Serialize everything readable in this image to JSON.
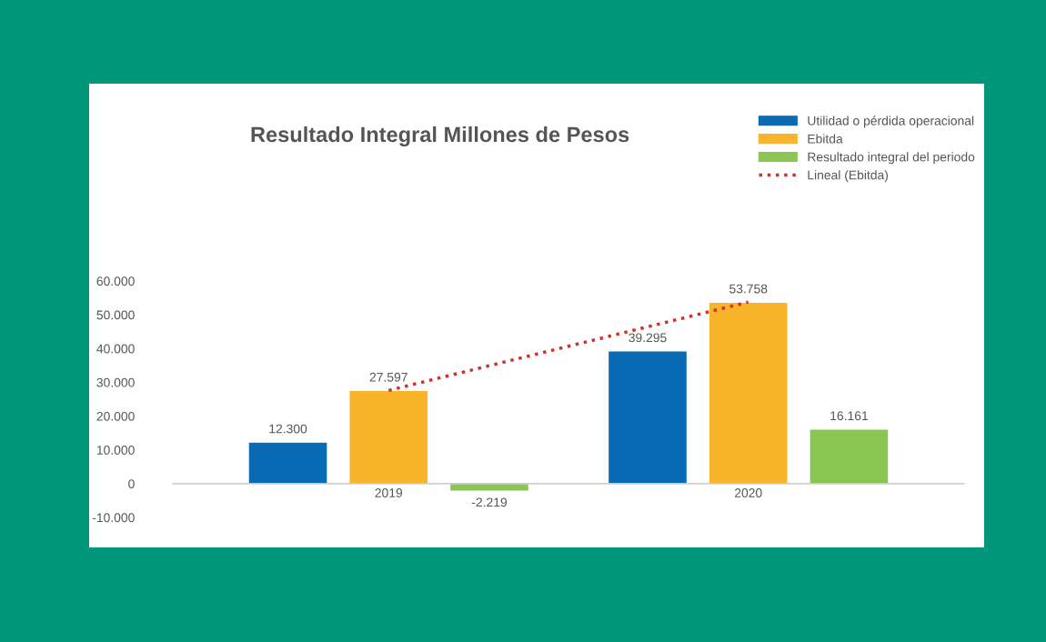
{
  "chart_data": {
    "type": "bar",
    "title": "Resultado Integral Millones de Pesos",
    "categories": [
      "2019",
      "2020"
    ],
    "series": [
      {
        "name": "Utilidad o pérdida operacional",
        "color": "#0a6bb5",
        "values": [
          12300,
          39295
        ],
        "value_labels": [
          "12.300",
          "39.295"
        ]
      },
      {
        "name": "Ebitda",
        "color": "#f9b52a",
        "values": [
          27597,
          53758
        ],
        "value_labels": [
          "27.597",
          "53.758"
        ]
      },
      {
        "name": "Resultado integral del periodo",
        "color": "#8bc653",
        "values": [
          -2219,
          16161
        ],
        "value_labels": [
          "-2.219",
          "16.161"
        ]
      },
      {
        "name": "Lineal (Ebitda)",
        "type": "line",
        "color": "#d0312d",
        "line_style": "dotted",
        "values": [
          27597,
          53758
        ]
      }
    ],
    "ylim": [
      -10000,
      60000
    ],
    "yticks": [
      {
        "value": -10000,
        "label": "-10.000"
      },
      {
        "value": 0,
        "label": "0"
      },
      {
        "value": 10000,
        "label": "10.000"
      },
      {
        "value": 20000,
        "label": "20.000"
      },
      {
        "value": 30000,
        "label": "30.000"
      },
      {
        "value": 40000,
        "label": "40.000"
      },
      {
        "value": 50000,
        "label": "50.000"
      },
      {
        "value": 60000,
        "label": "60.000"
      }
    ],
    "grid": false,
    "legend": "top right"
  }
}
